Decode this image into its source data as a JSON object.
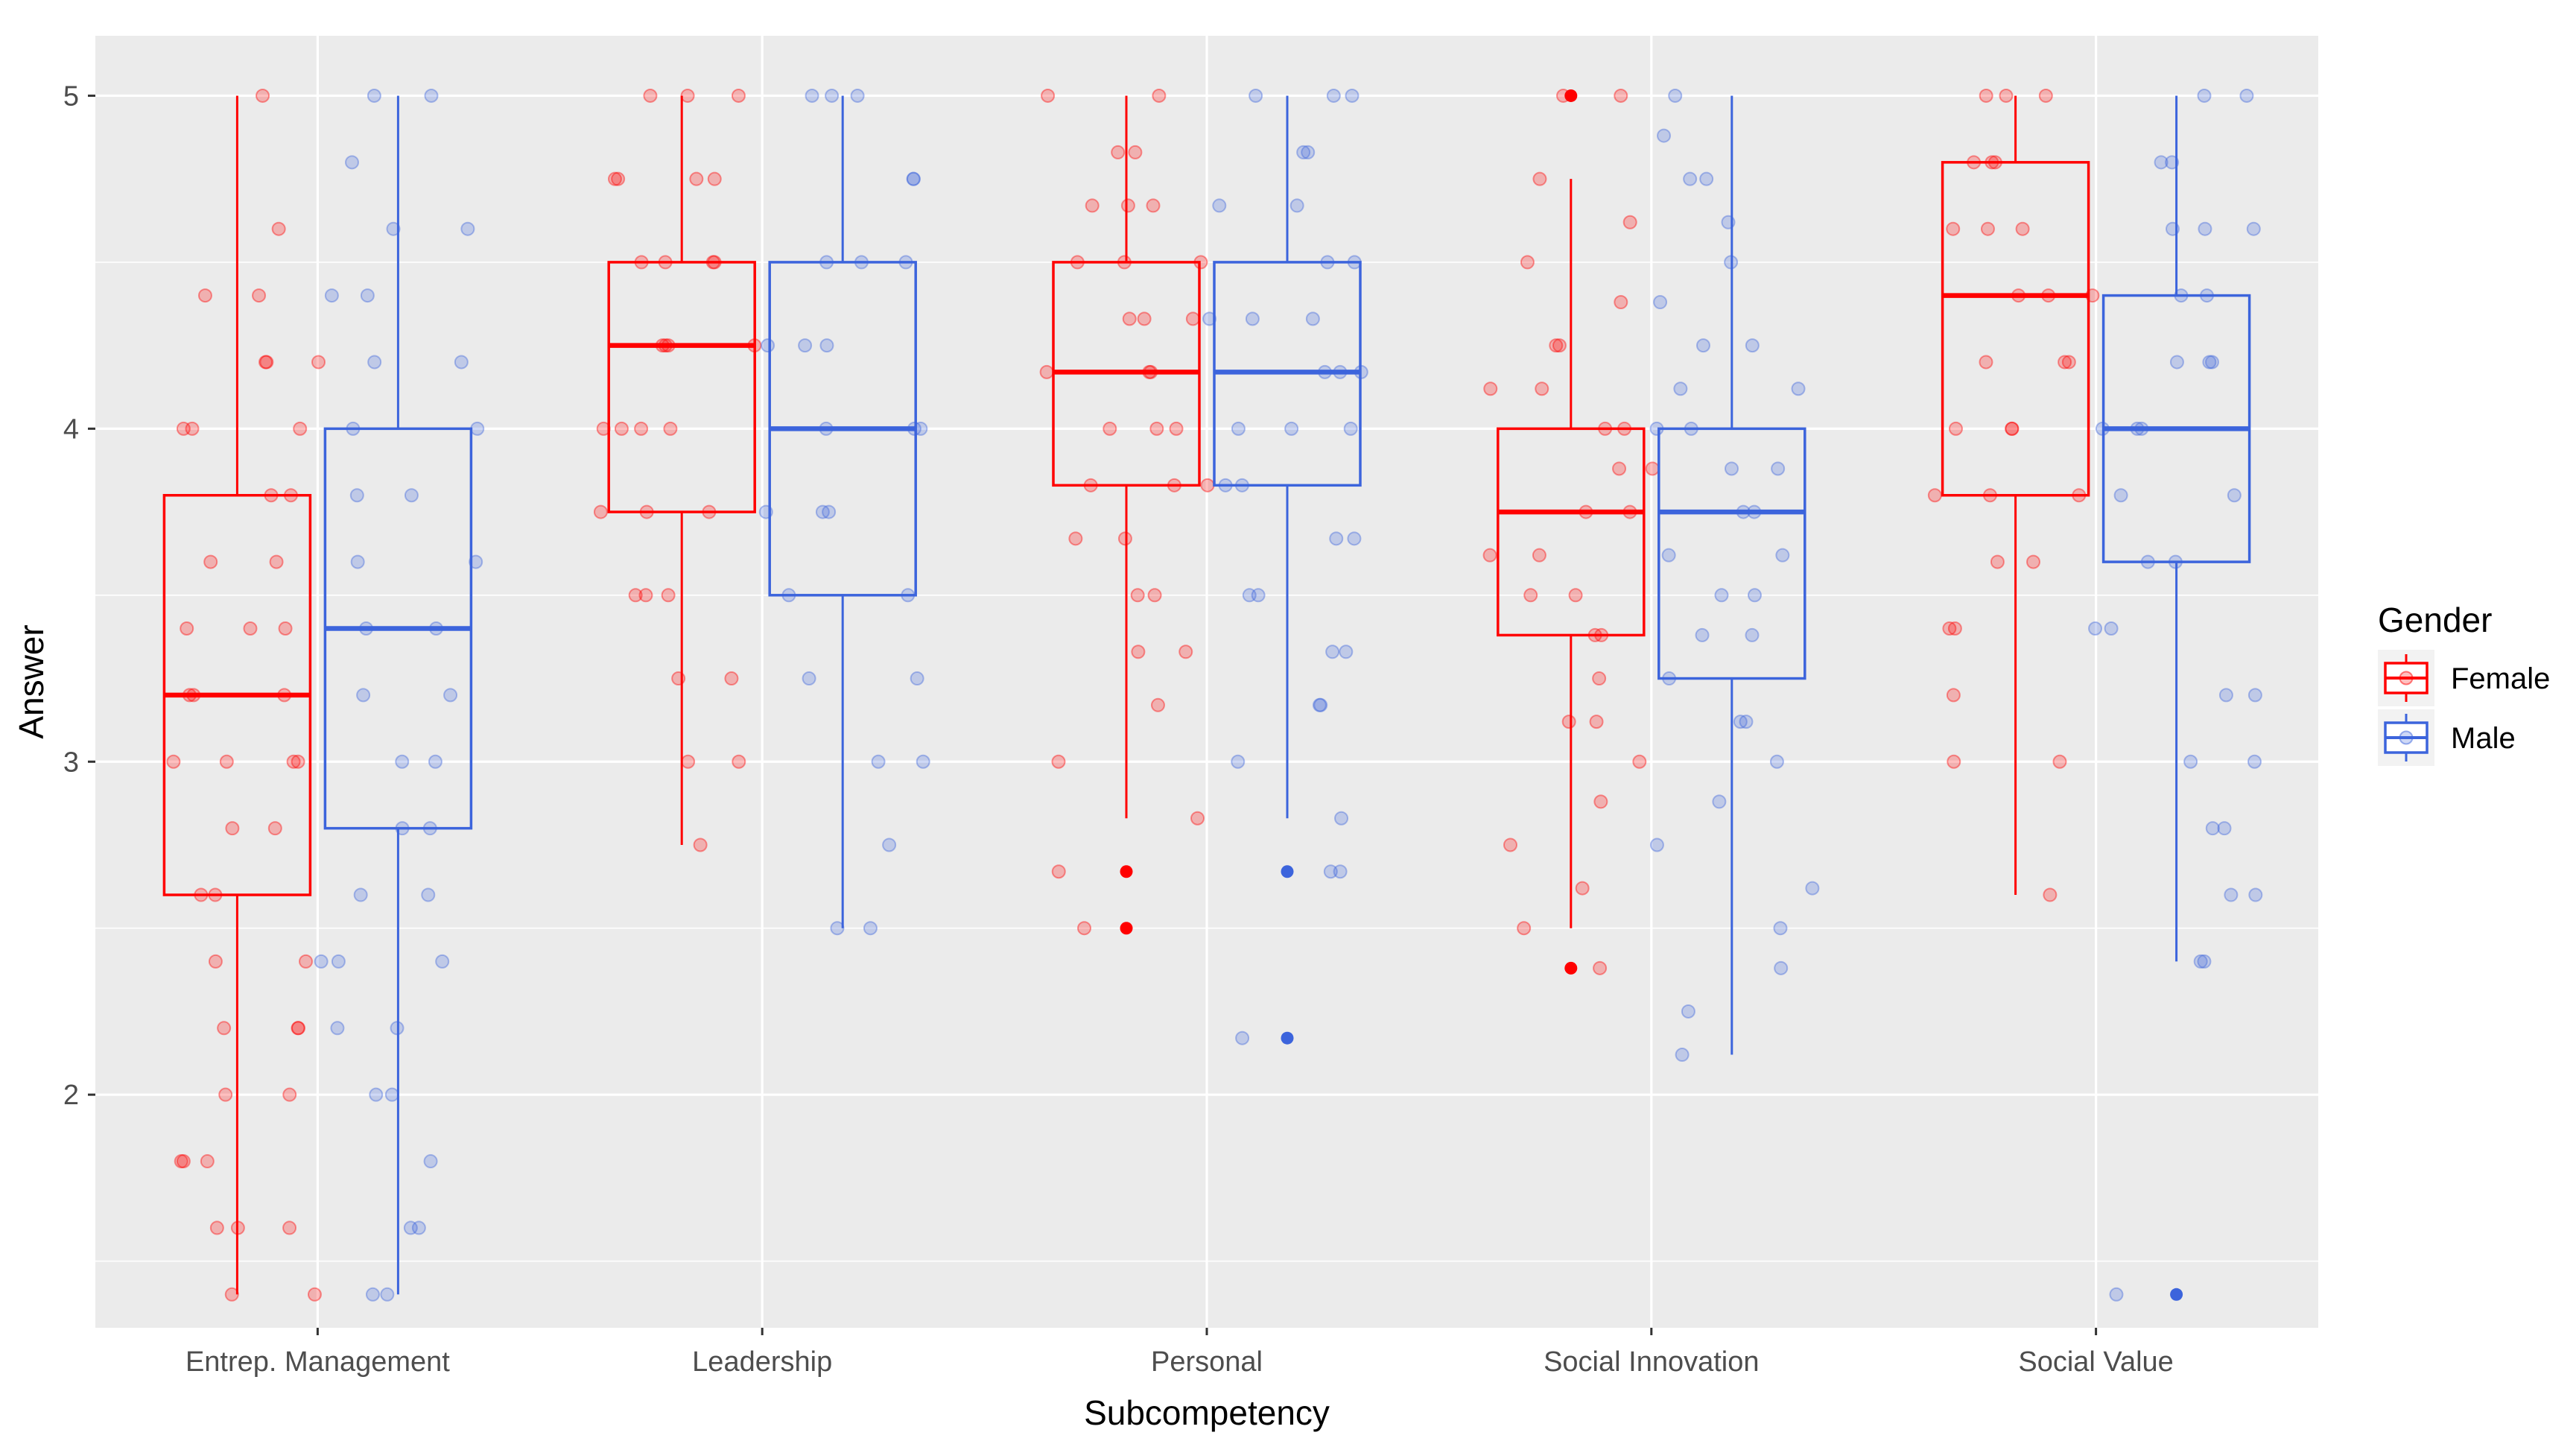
{
  "chart_data": {
    "type": "boxplot",
    "title": "",
    "xlabel": "Subcompetency",
    "ylabel": "Answer",
    "ylim": [
      1.3,
      5.18
    ],
    "y_ticks": [
      2,
      3,
      4,
      5
    ],
    "y_tick_labels": [
      "2",
      "3",
      "4",
      "5"
    ],
    "categories": [
      "Entrep. Management",
      "Leadership",
      "Personal",
      "Social Innovation",
      "Social Value"
    ],
    "legend": {
      "title": "Gender",
      "position": "right",
      "entries": [
        "Female",
        "Male"
      ]
    },
    "colors": {
      "Female": "#ff0000",
      "Male": "#3c64dc",
      "panel_background": "#ebebeb",
      "grid": "#ffffff"
    },
    "series": [
      {
        "name": "Female",
        "boxes": [
          {
            "category": "Entrep. Management",
            "lower_whisker": 1.4,
            "q1": 2.6,
            "median": 3.2,
            "q3": 3.8,
            "upper_whisker": 5.0,
            "points": [
              5.0,
              4.4,
              4.4,
              4.2,
              4.2,
              4.2,
              4.0,
              4.0,
              3.8,
              3.8,
              3.6,
              3.6,
              3.4,
              3.4,
              3.4,
              3.2,
              3.2,
              3.2,
              3.0,
              3.0,
              3.0,
              2.8,
              2.8,
              2.6,
              2.6,
              2.4,
              2.4,
              2.2,
              2.2,
              2.0,
              2.0,
              1.8,
              1.8,
              1.8,
              1.6,
              1.6,
              1.4,
              1.4,
              4.6,
              4.0,
              3.0,
              2.2,
              1.6
            ]
          },
          {
            "category": "Leadership",
            "lower_whisker": 2.75,
            "q1": 3.75,
            "median": 4.25,
            "q3": 4.5,
            "upper_whisker": 5.0,
            "points": [
              5.0,
              5.0,
              5.0,
              4.75,
              4.75,
              4.75,
              4.75,
              4.5,
              4.5,
              4.5,
              4.5,
              4.25,
              4.25,
              4.25,
              4.25,
              4.0,
              4.0,
              4.0,
              4.0,
              3.75,
              3.75,
              3.75,
              3.5,
              3.5,
              3.5,
              3.25,
              3.25,
              3.0,
              3.0,
              2.75
            ]
          },
          {
            "category": "Personal",
            "lower_whisker": 2.83,
            "q1": 3.83,
            "median": 4.17,
            "q3": 4.5,
            "upper_whisker": 5.0,
            "outliers": [
              2.67,
              2.5
            ],
            "points": [
              5.0,
              5.0,
              4.83,
              4.83,
              4.67,
              4.67,
              4.67,
              4.5,
              4.5,
              4.5,
              4.33,
              4.33,
              4.33,
              4.17,
              4.17,
              4.17,
              4.0,
              4.0,
              4.0,
              3.83,
              3.83,
              3.83,
              3.67,
              3.67,
              3.5,
              3.5,
              3.33,
              3.33,
              3.17,
              3.0,
              2.83,
              2.67,
              2.5
            ]
          },
          {
            "category": "Social Innovation",
            "lower_whisker": 2.5,
            "q1": 3.38,
            "median": 3.75,
            "q3": 4.0,
            "upper_whisker": 4.75,
            "outliers": [
              5.0,
              2.38
            ],
            "points": [
              5.0,
              5.0,
              4.75,
              4.62,
              4.5,
              4.38,
              4.25,
              4.25,
              4.12,
              4.12,
              4.0,
              4.0,
              3.88,
              3.88,
              3.75,
              3.75,
              3.62,
              3.62,
              3.5,
              3.5,
              3.38,
              3.38,
              3.25,
              3.12,
              3.12,
              3.0,
              2.88,
              2.75,
              2.62,
              2.5,
              2.38
            ]
          },
          {
            "category": "Social Value",
            "lower_whisker": 2.6,
            "q1": 3.8,
            "median": 4.4,
            "q3": 4.8,
            "upper_whisker": 5.0,
            "points": [
              5.0,
              5.0,
              5.0,
              4.8,
              4.8,
              4.8,
              4.6,
              4.6,
              4.6,
              4.4,
              4.4,
              4.4,
              4.2,
              4.2,
              4.2,
              4.0,
              4.0,
              4.0,
              3.8,
              3.8,
              3.8,
              3.6,
              3.6,
              3.4,
              3.4,
              3.2,
              3.0,
              3.0,
              2.6
            ]
          }
        ]
      },
      {
        "name": "Male",
        "boxes": [
          {
            "category": "Entrep. Management",
            "lower_whisker": 1.4,
            "q1": 2.8,
            "median": 3.4,
            "q3": 4.0,
            "upper_whisker": 5.0,
            "points": [
              5.0,
              5.0,
              4.8,
              4.6,
              4.6,
              4.4,
              4.4,
              4.2,
              4.2,
              4.0,
              4.0,
              3.8,
              3.8,
              3.6,
              3.6,
              3.4,
              3.4,
              3.2,
              3.2,
              3.0,
              3.0,
              2.8,
              2.8,
              2.6,
              2.6,
              2.4,
              2.4,
              2.4,
              2.2,
              2.2,
              2.0,
              2.0,
              1.8,
              1.6,
              1.6,
              1.4,
              1.4
            ]
          },
          {
            "category": "Leadership",
            "lower_whisker": 2.5,
            "q1": 3.5,
            "median": 4.0,
            "q3": 4.5,
            "upper_whisker": 5.0,
            "points": [
              5.0,
              5.0,
              5.0,
              4.75,
              4.75,
              4.5,
              4.5,
              4.5,
              4.25,
              4.25,
              4.25,
              4.0,
              4.0,
              4.0,
              3.75,
              3.75,
              3.75,
              3.5,
              3.5,
              3.25,
              3.25,
              3.0,
              3.0,
              2.75,
              2.5,
              2.5
            ]
          },
          {
            "category": "Personal",
            "lower_whisker": 2.83,
            "q1": 3.83,
            "median": 4.17,
            "q3": 4.5,
            "upper_whisker": 5.0,
            "outliers": [
              2.67,
              2.17
            ],
            "points": [
              5.0,
              5.0,
              5.0,
              4.83,
              4.83,
              4.67,
              4.67,
              4.5,
              4.5,
              4.33,
              4.33,
              4.33,
              4.17,
              4.17,
              4.17,
              4.0,
              4.0,
              4.0,
              3.83,
              3.83,
              3.67,
              3.67,
              3.5,
              3.5,
              3.33,
              3.33,
              3.17,
              3.17,
              3.0,
              2.83,
              2.67,
              2.67,
              2.17
            ]
          },
          {
            "category": "Social Innovation",
            "lower_whisker": 2.12,
            "q1": 3.25,
            "median": 3.75,
            "q3": 4.0,
            "upper_whisker": 5.0,
            "points": [
              5.0,
              4.88,
              4.75,
              4.75,
              4.62,
              4.5,
              4.38,
              4.25,
              4.25,
              4.12,
              4.12,
              4.0,
              4.0,
              3.88,
              3.88,
              3.75,
              3.75,
              3.62,
              3.62,
              3.5,
              3.5,
              3.38,
              3.38,
              3.25,
              3.12,
              3.12,
              3.0,
              2.88,
              2.75,
              2.62,
              2.5,
              2.38,
              2.25,
              2.12
            ]
          },
          {
            "category": "Social Value",
            "lower_whisker": 2.4,
            "q1": 3.6,
            "median": 4.0,
            "q3": 4.4,
            "upper_whisker": 5.0,
            "outliers": [
              1.4
            ],
            "points": [
              5.0,
              5.0,
              4.8,
              4.8,
              4.6,
              4.6,
              4.6,
              4.4,
              4.4,
              4.2,
              4.2,
              4.2,
              4.0,
              4.0,
              4.0,
              3.8,
              3.8,
              3.6,
              3.6,
              3.4,
              3.4,
              3.2,
              3.2,
              3.0,
              3.0,
              2.8,
              2.8,
              2.6,
              2.6,
              2.4,
              2.4,
              1.4
            ]
          }
        ]
      }
    ]
  }
}
